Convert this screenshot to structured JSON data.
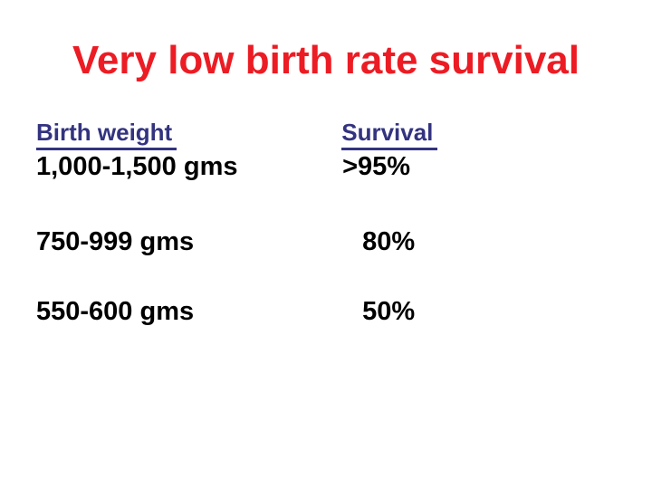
{
  "slide": {
    "title": "Very low birth rate survival"
  },
  "table": {
    "headers": {
      "birth_weight": "Birth weight",
      "survival": "Survival"
    },
    "rows": [
      {
        "birth_weight": "1,000-1,500 gms",
        "survival": ">95%"
      },
      {
        "birth_weight": "750-999 gms",
        "survival": "80%"
      },
      {
        "birth_weight": "550-600 gms",
        "survival": "50%"
      }
    ]
  },
  "colors": {
    "title_red": "#EC1C24",
    "header_navy": "#333380",
    "body_text": "#000000",
    "background": "#FFFFFF"
  }
}
